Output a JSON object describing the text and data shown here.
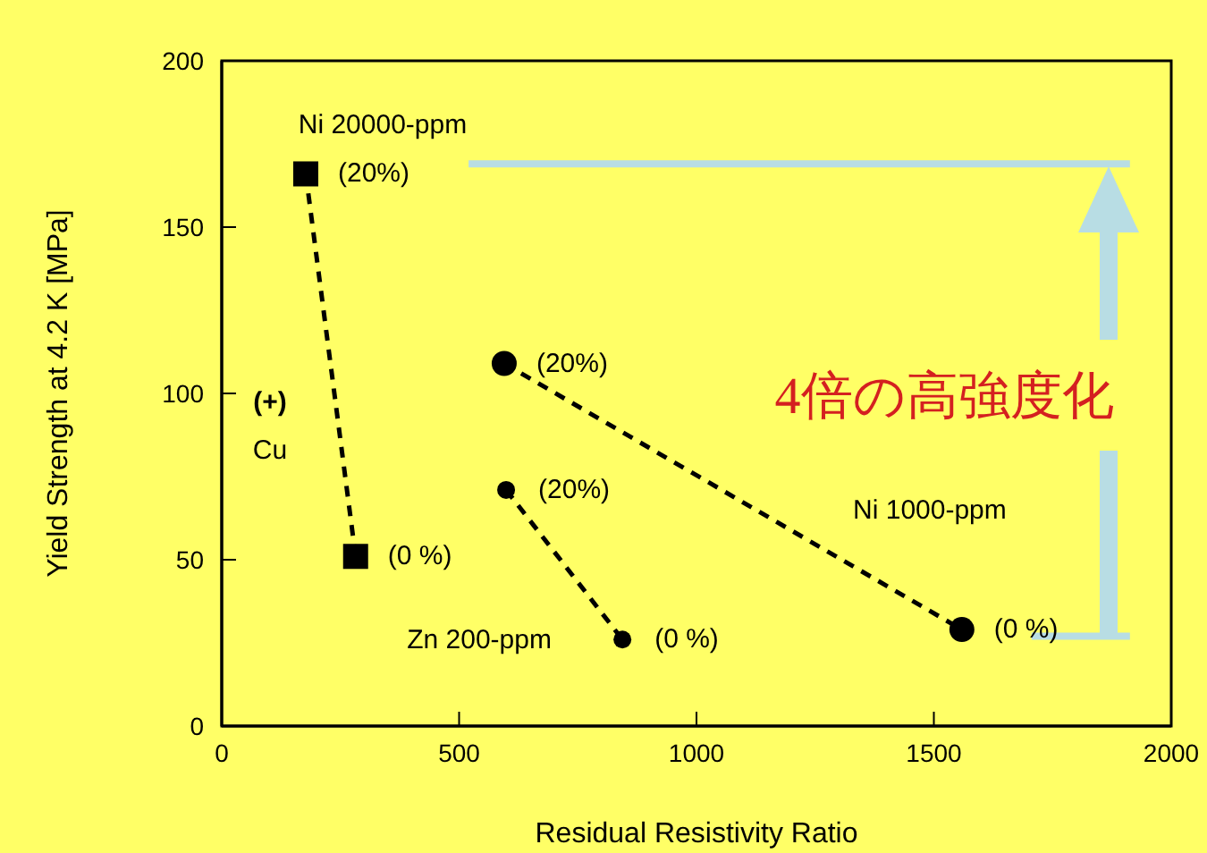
{
  "chart_data": {
    "type": "line",
    "xlabel": "Residual Resistivity Ratio",
    "ylabel": "Yield Strength at 4.2 K  [MPa]",
    "xlim": [
      0,
      2000
    ],
    "xticks": [
      0,
      500,
      1000,
      1500,
      2000
    ],
    "ylim": [
      0,
      200
    ],
    "yticks": [
      0,
      50,
      100,
      150,
      200
    ],
    "series": [
      {
        "name": "Ni 20000-ppm",
        "color": "#000000",
        "marker": "square",
        "line_style": "dashed",
        "x": [
          177,
          282
        ],
        "values": [
          166,
          51
        ]
      },
      {
        "name": "Ni 1000-ppm",
        "color": "#000000",
        "marker": "circle",
        "line_style": "dashed",
        "x": [
          595,
          1559
        ],
        "values": [
          109,
          29
        ]
      },
      {
        "name": "Zn 200-ppm",
        "color": "#000000",
        "marker": "circle",
        "line_style": "dashed",
        "x": [
          599,
          844
        ],
        "values": [
          71,
          26
        ]
      },
      {
        "color": "#b8dde4",
        "marker": "none",
        "line_style": "solid",
        "x": [
          520,
          1913
        ],
        "values": [
          169,
          169
        ]
      },
      {
        "color": "#b8dde4",
        "marker": "none",
        "line_style": "solid",
        "x": [
          1706,
          1913
        ],
        "values": [
          27,
          27
        ]
      }
    ],
    "annotations": [
      {
        "text": "(20%)",
        "x": 177,
        "y": 166
      },
      {
        "text": "(0 %)",
        "x": 282,
        "y": 51
      },
      {
        "text": "(20%)",
        "x": 595,
        "y": 109
      },
      {
        "text": "(0 %)",
        "x": 1559,
        "y": 29
      },
      {
        "text": "(20%)",
        "x": 599,
        "y": 71
      },
      {
        "text": "(0 %)",
        "x": 844,
        "y": 26
      },
      "(+)",
      "Cu",
      "4倍の高強度化"
    ]
  }
}
